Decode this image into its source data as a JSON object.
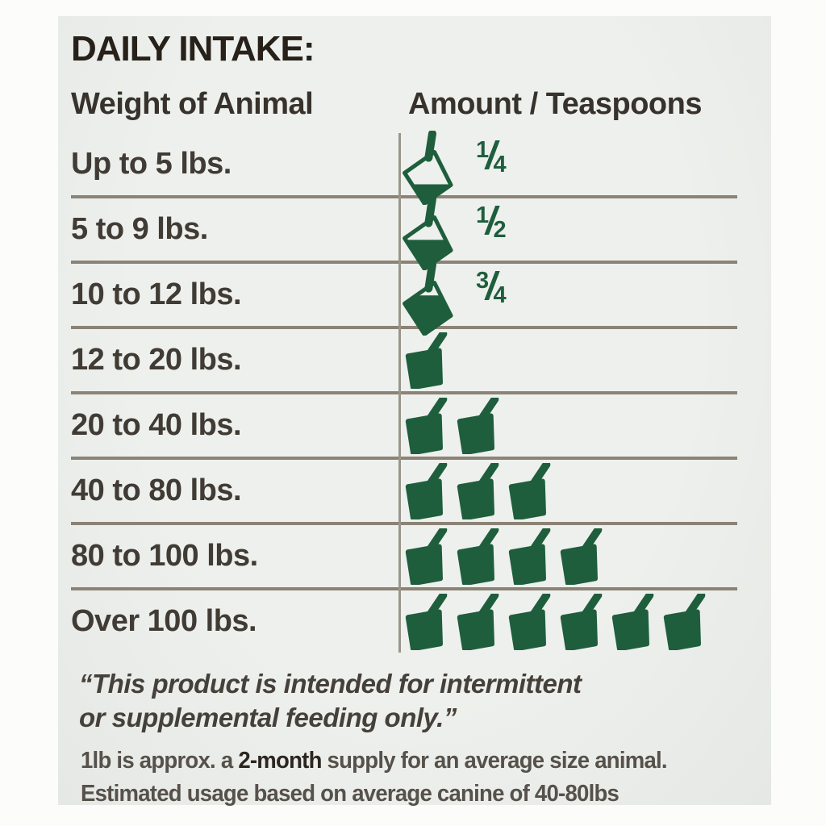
{
  "title": "DAILY INTAKE:",
  "table": {
    "col1_header": "Weight of Animal",
    "col2_header": "Amount / Teaspoons",
    "rows": [
      {
        "weight": "Up to 5 lbs.",
        "scoops": 0,
        "fraction": "1/4",
        "fill": 0.25
      },
      {
        "weight": "5 to 9 lbs.",
        "scoops": 0,
        "fraction": "1/2",
        "fill": 0.5
      },
      {
        "weight": "10 to 12 lbs.",
        "scoops": 0,
        "fraction": "3/4",
        "fill": 0.75
      },
      {
        "weight": "12 to 20 lbs.",
        "scoops": 1
      },
      {
        "weight": "20 to 40 lbs.",
        "scoops": 2
      },
      {
        "weight": "40 to 80 lbs.",
        "scoops": 3
      },
      {
        "weight": "80 to 100 lbs.",
        "scoops": 4
      },
      {
        "weight": "Over 100 lbs.",
        "scoops": 6
      }
    ]
  },
  "notes": {
    "quote_line1": "“This product is intended for intermittent",
    "quote_line2": "or supplemental feeding only.”",
    "supply_prefix": "1lb is approx. a ",
    "supply_bold": "2-month",
    "supply_suffix": " supply for an average size animal.",
    "usage_line": "Estimated usage based on average canine of 40-80lbs"
  },
  "icons": {
    "amount_icon": "scoop-icon"
  },
  "colors": {
    "scoop_green": "#1e5e3d",
    "rule_gray": "#8b8376",
    "title_dark": "#27211a"
  }
}
